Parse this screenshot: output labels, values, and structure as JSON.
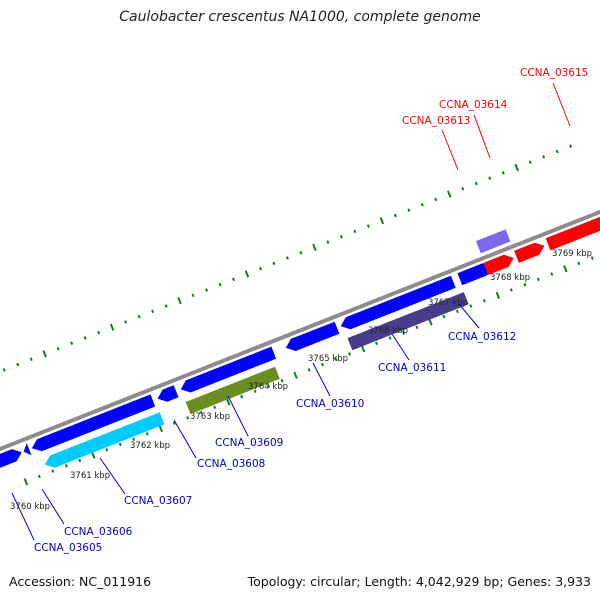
{
  "title": "Caulobacter crescentus NA1000, complete genome",
  "footer": {
    "accession": "Accession: NC_011916",
    "summary": "Topology: circular; Length: 4,042,929 bp; Genes: 3,933"
  },
  "colors": {
    "backbone": "#8c8c8c",
    "tick": "#1a7a1a",
    "label_blue": "#0000cc",
    "label_red": "#ff0000"
  },
  "scale_labels": [
    "3760 kbp",
    "3761 kbp",
    "3762 kbp",
    "3763 kbp",
    "3764 kbp",
    "3765 kbp",
    "3766 kbp",
    "3767 kbp",
    "3768 kbp",
    "3769 kbp"
  ],
  "features": [
    {
      "color": "#0000ff"
    },
    {
      "color": "#0000ff"
    },
    {
      "color": "#0000ff"
    },
    {
      "color": "#0000ff"
    },
    {
      "color": "#0000ff"
    },
    {
      "color": "#0000ff"
    },
    {
      "color": "#0000ff"
    },
    {
      "color": "#0000ff"
    },
    {
      "color": "#00ccff"
    },
    {
      "color": "#6b8e23"
    },
    {
      "color": "#483d8b"
    },
    {
      "color": "#7b68ee"
    },
    {
      "color": "#ff0000"
    },
    {
      "color": "#ff0000"
    },
    {
      "color": "#ff0000"
    }
  ],
  "gene_labels": [
    {
      "text": "CCNA_03605",
      "color": "#0000cc"
    },
    {
      "text": "CCNA_03606",
      "color": "#0000cc"
    },
    {
      "text": "CCNA_03607",
      "color": "#0000cc"
    },
    {
      "text": "CCNA_03608",
      "color": "#0000cc"
    },
    {
      "text": "CCNA_03609",
      "color": "#0000cc"
    },
    {
      "text": "CCNA_03610",
      "color": "#0000cc"
    },
    {
      "text": "CCNA_03611",
      "color": "#0000cc"
    },
    {
      "text": "CCNA_03612",
      "color": "#0000cc"
    },
    {
      "text": "CCNA_03613",
      "color": "#ff0000"
    },
    {
      "text": "CCNA_03614",
      "color": "#ff0000"
    },
    {
      "text": "CCNA_03615",
      "color": "#ff0000"
    }
  ]
}
